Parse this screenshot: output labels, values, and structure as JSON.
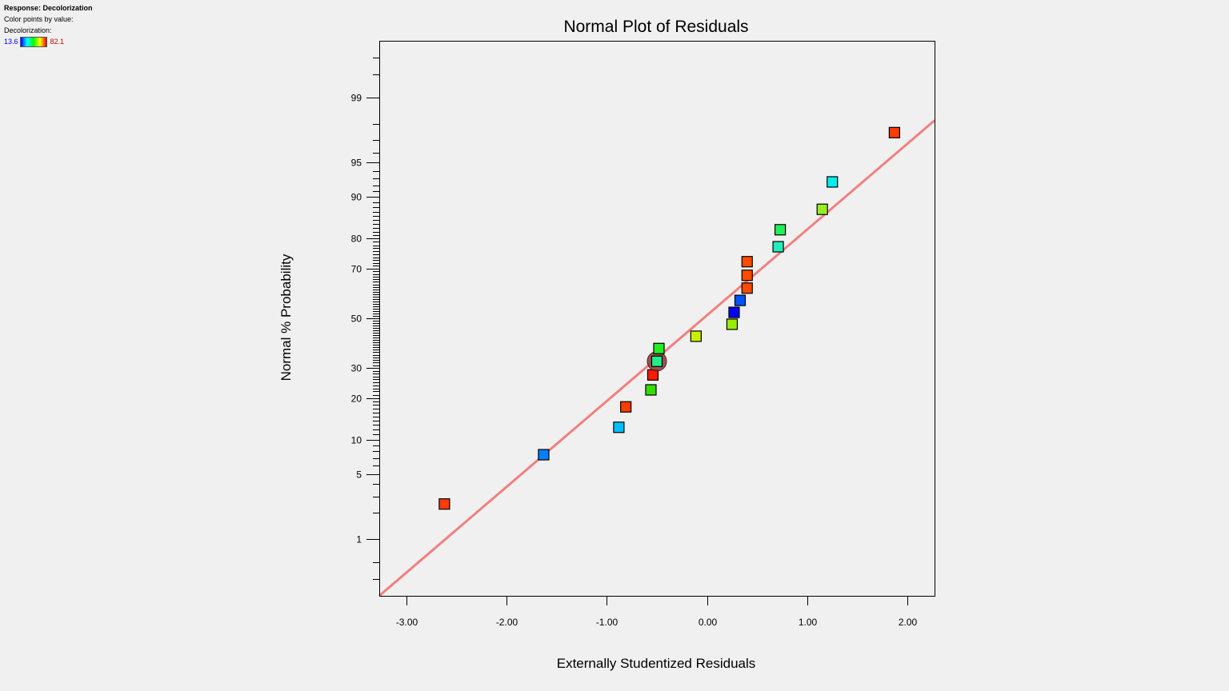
{
  "legend_panel": {
    "response_label": "Response: Decolorization",
    "color_note": "Color points by value:",
    "variable_label": "Decolorization:",
    "min_value": "13.6",
    "max_value": "82.1"
  },
  "colors": {
    "fit_line": "#f27f7f",
    "frame": "#000000",
    "background": "#f0f0f0"
  },
  "chart_data": {
    "type": "scatter",
    "title": "Normal Plot of Residuals",
    "xlabel": "Externally Studentized Residuals",
    "ylabel": "Normal % Probability",
    "y_scale": "normal-probability",
    "xlim": [
      -3.27,
      2.27
    ],
    "ylim_percent": [
      0.17,
      99.83
    ],
    "x_ticks": [
      {
        "value": -3,
        "label": "-3.00"
      },
      {
        "value": -2,
        "label": "-2.00"
      },
      {
        "value": -1,
        "label": "-1.00"
      },
      {
        "value": 0,
        "label": "0.00"
      },
      {
        "value": 1,
        "label": "1.00"
      },
      {
        "value": 2,
        "label": "2.00"
      }
    ],
    "y_ticks": [
      {
        "value": 1,
        "label": "1"
      },
      {
        "value": 5,
        "label": "5"
      },
      {
        "value": 10,
        "label": "10"
      },
      {
        "value": 20,
        "label": "20"
      },
      {
        "value": 30,
        "label": "30"
      },
      {
        "value": 50,
        "label": "50"
      },
      {
        "value": 70,
        "label": "70"
      },
      {
        "value": 80,
        "label": "80"
      },
      {
        "value": 90,
        "label": "90"
      },
      {
        "value": 95,
        "label": "95"
      },
      {
        "value": 99,
        "label": "99"
      }
    ],
    "fit_line": {
      "x": [
        -3.27,
        2.27
      ],
      "y_percent": [
        0.17,
        98.16
      ]
    },
    "points": [
      {
        "x": -2.62,
        "y": 2.5,
        "color": "#ff3c00"
      },
      {
        "x": -1.63,
        "y": 7.5,
        "color": "#0080ff"
      },
      {
        "x": -0.88,
        "y": 12.5,
        "color": "#00bfff"
      },
      {
        "x": -0.81,
        "y": 17.5,
        "color": "#ff3c00"
      },
      {
        "x": -0.56,
        "y": 22.5,
        "color": "#33dd00"
      },
      {
        "x": -0.54,
        "y": 27.5,
        "color": "#ff1a00"
      },
      {
        "x": -0.5,
        "y": 32.5,
        "color": "#22ee88",
        "highlighted": true
      },
      {
        "x": -0.48,
        "y": 37.5,
        "color": "#22ee22"
      },
      {
        "x": -0.11,
        "y": 42.5,
        "color": "#ccee00"
      },
      {
        "x": 0.25,
        "y": 47.5,
        "color": "#99ee00"
      },
      {
        "x": 0.27,
        "y": 52.5,
        "color": "#0000ff"
      },
      {
        "x": 0.33,
        "y": 57.5,
        "color": "#0055ff"
      },
      {
        "x": 0.4,
        "y": 62.5,
        "color": "#ff4a00"
      },
      {
        "x": 0.4,
        "y": 67.5,
        "color": "#ff4a00"
      },
      {
        "x": 0.4,
        "y": 72.5,
        "color": "#ff4a00"
      },
      {
        "x": 0.71,
        "y": 77.5,
        "color": "#22eebb"
      },
      {
        "x": 0.73,
        "y": 82.5,
        "color": "#22ee55"
      },
      {
        "x": 1.15,
        "y": 87.5,
        "color": "#99ee22"
      },
      {
        "x": 1.25,
        "y": 92.5,
        "color": "#00eeee"
      },
      {
        "x": 1.87,
        "y": 97.5,
        "color": "#ff3c00"
      }
    ]
  }
}
